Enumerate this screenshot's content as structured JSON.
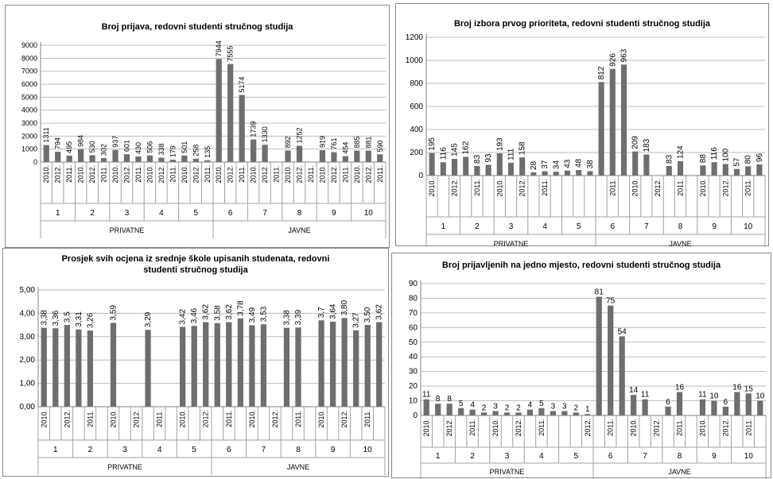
{
  "chart_data": [
    {
      "type": "bar",
      "title": "Broj prijava, redovni studenti stručnog studija",
      "ylim": [
        0,
        9000
      ],
      "yticks": [
        0,
        1000,
        2000,
        3000,
        4000,
        5000,
        6000,
        7000,
        8000,
        9000
      ],
      "tick_labels": [
        "0",
        "1000",
        "2000",
        "3000",
        "4000",
        "5000",
        "6000",
        "7000",
        "8000",
        "9000"
      ],
      "groups": [
        "1",
        "2",
        "3",
        "4",
        "5",
        "6",
        "7",
        "8",
        "9",
        "10"
      ],
      "years": [
        "2010.",
        "2011.",
        "2012."
      ],
      "year_labels": [
        "2010.",
        "2012.",
        "2011.",
        "2010.",
        "2012.",
        "2011.",
        "2010.",
        "2012.",
        "2011.",
        "2010.",
        "2012.",
        "2011.",
        "2010.",
        "2012.",
        "2011.",
        "2010.",
        "2012.",
        "2011.",
        "2010.",
        "2012.",
        "2011.",
        "2010.",
        "2012.",
        "2011.",
        "2010.",
        "2012.",
        "2011.",
        "2010.",
        "2012.",
        "2011."
      ],
      "sectors": [
        {
          "name": "PRIVATNE",
          "groups": 5
        },
        {
          "name": "JAVNE",
          "groups": 5
        }
      ],
      "values": [
        1311,
        794,
        495,
        984,
        530,
        302,
        937,
        601,
        430,
        506,
        338,
        179,
        501,
        258,
        135,
        7944,
        7555,
        5174,
        1739,
        1330,
        null,
        892,
        1252,
        null,
        919,
        761,
        454,
        885,
        881,
        590
      ],
      "labels": [
        "1311",
        "794",
        "495",
        "984",
        "530",
        "302",
        "937",
        "601",
        "430",
        "506",
        "338",
        "179",
        "501",
        "258",
        "135",
        "7944",
        "7555",
        "5174",
        "1739",
        "1330",
        "",
        "892",
        "1252",
        "",
        "919",
        "761",
        "454",
        "885",
        "881",
        "590"
      ],
      "grid": true
    },
    {
      "type": "bar",
      "title": "Broj izbora prvog prioriteta, redovni studenti stručnog studija",
      "ylim": [
        0,
        1200
      ],
      "yticks": [
        0,
        200,
        400,
        600,
        800,
        1000,
        1200
      ],
      "tick_labels": [
        "0",
        "200",
        "400",
        "600",
        "800",
        "1000",
        "1200"
      ],
      "groups": [
        "1",
        "2",
        "3",
        "4",
        "5",
        "6",
        "7",
        "8",
        "9",
        "10"
      ],
      "years": [
        "2010.",
        "2011.",
        "2012."
      ],
      "year_labels": [
        "2010.",
        "",
        "2012.",
        "",
        "2011.",
        "",
        "2010.",
        "",
        "2012.",
        "",
        "2011.",
        "",
        "",
        "",
        "",
        "",
        "2011.",
        "",
        "2010.",
        "",
        "2012.",
        "",
        "2011.",
        "",
        "2010.",
        "",
        "2012.",
        "",
        "2011.",
        ""
      ],
      "sectors": [
        {
          "name": "PRIVATNE",
          "groups": 5
        },
        {
          "name": "JAVNE",
          "groups": 5
        }
      ],
      "values": [
        195,
        116,
        145,
        162,
        83,
        93,
        193,
        111,
        158,
        28,
        37,
        34,
        43,
        48,
        38,
        812,
        926,
        963,
        209,
        183,
        null,
        83,
        124,
        null,
        88,
        116,
        100,
        57,
        80,
        96
      ],
      "labels": [
        "195",
        "116",
        "145",
        "162",
        "83",
        "93",
        "193",
        "111",
        "158",
        "28",
        "37",
        "34",
        "43",
        "48",
        "38",
        "812",
        "926",
        "963",
        "209",
        "183",
        "",
        "83",
        "124",
        "",
        "88",
        "116",
        "100",
        "57",
        "80",
        "96"
      ],
      "grid": true
    },
    {
      "type": "bar",
      "title": "Prosjek svih ocjena iz srednje škole upisanih studenata, redovni studenti stručnog studija",
      "title_lines": [
        "Prosjek svih ocjena iz srednje škole upisanih studenata, redovni",
        "studenti stručnog studija"
      ],
      "ylim": [
        0,
        5
      ],
      "yticks": [
        0,
        1,
        2,
        3,
        4,
        5
      ],
      "tick_labels": [
        "0,00",
        "1,00",
        "2,00",
        "3,00",
        "4,00",
        "5,00"
      ],
      "groups": [
        "1",
        "2",
        "3",
        "4",
        "5",
        "6",
        "7",
        "8",
        "9",
        "10"
      ],
      "years": [
        "2010.",
        "2011.",
        "2012."
      ],
      "year_labels": [
        "2010.",
        "",
        "2012.",
        "",
        "2011.",
        "",
        "2010.",
        "",
        "2012.",
        "",
        "2011.",
        "",
        "2010.",
        "",
        "2012.",
        "",
        "2011.",
        "",
        "2010.",
        "",
        "2012.",
        "",
        "2011.",
        "",
        "2010.",
        "",
        "2012.",
        "",
        "2011.",
        ""
      ],
      "sectors": [
        {
          "name": "PRIVATNE",
          "groups": 5
        },
        {
          "name": "JAVNE",
          "groups": 5
        }
      ],
      "values": [
        3.38,
        3.36,
        3.5,
        3.31,
        3.26,
        null,
        3.59,
        null,
        null,
        3.29,
        null,
        null,
        3.42,
        3.46,
        3.62,
        3.58,
        3.62,
        3.78,
        3.49,
        3.53,
        null,
        3.38,
        3.39,
        null,
        3.7,
        3.64,
        3.8,
        3.27,
        3.5,
        3.62
      ],
      "labels": [
        "3,38",
        "3,36",
        "3,5",
        "3,31",
        "3,26",
        "",
        "3,59",
        "",
        "",
        "3,29",
        "",
        "",
        "3,42",
        "3,46",
        "3,62",
        "3,58",
        "3,62",
        "3,78",
        "3,49",
        "3,53",
        "",
        "3,38",
        "3,39",
        "",
        "3,7",
        "3,64",
        "3,80",
        "3,27",
        "3,50",
        "3,62"
      ],
      "grid": true
    },
    {
      "type": "bar",
      "title": "Broj prijavljenih na jedno mjesto, redovni studenti stručnog studija",
      "ylim": [
        0,
        90
      ],
      "yticks": [
        0,
        10,
        20,
        30,
        40,
        50,
        60,
        70,
        80,
        90
      ],
      "tick_labels": [
        "0",
        "10",
        "20",
        "30",
        "40",
        "50",
        "60",
        "70",
        "80",
        "90"
      ],
      "groups": [
        "1",
        "2",
        "3",
        "4",
        "5",
        "6",
        "7",
        "8",
        "9",
        "10"
      ],
      "years": [
        "2010.",
        "2011.",
        "2012."
      ],
      "year_labels": [
        "2010.",
        "",
        "2012.",
        "",
        "2011.",
        "",
        "2010.",
        "",
        "2012.",
        "",
        "2011.",
        "",
        "",
        "",
        "2012.",
        "",
        "2011.",
        "",
        "2010.",
        "",
        "2012.",
        "",
        "2011.",
        "",
        "2010.",
        "",
        "2012.",
        "",
        "2011.",
        ""
      ],
      "sectors": [
        {
          "name": "PRIVATNE",
          "groups": 5
        },
        {
          "name": "JAVNE",
          "groups": 5
        }
      ],
      "values": [
        11,
        8,
        8,
        5,
        4,
        2,
        3,
        2,
        2,
        4,
        5,
        3,
        3,
        2,
        1,
        81,
        75,
        54,
        14,
        11,
        null,
        6,
        16,
        null,
        11,
        10,
        6,
        16,
        15,
        10
      ],
      "labels": [
        "11",
        "8",
        "8",
        "5",
        "4",
        "2",
        "3",
        "2",
        "2",
        "4",
        "5",
        "3",
        "3",
        "2",
        "1",
        "81",
        "75",
        "54",
        "14",
        "11",
        "",
        "6",
        "16",
        "",
        "11",
        "10",
        "6",
        "16",
        "15",
        "10"
      ],
      "label_orientation": "horizontal",
      "grid": true
    }
  ]
}
